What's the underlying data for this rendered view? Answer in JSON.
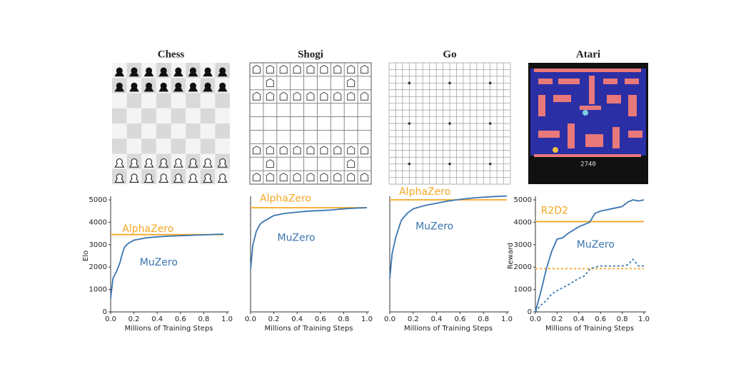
{
  "chart_data": [
    {
      "type": "line",
      "title": "Chess",
      "xlabel": "Millions of Training Steps",
      "ylabel": "Elo",
      "xlim": [
        0,
        1
      ],
      "xticks": [
        {
          "value": 0,
          "label": "0.0"
        },
        {
          "value": 0.2,
          "label": "0.2"
        },
        {
          "value": 0.4,
          "label": "0.4"
        },
        {
          "value": 0.6,
          "label": "0.6"
        },
        {
          "value": 0.8,
          "label": "0.8"
        },
        {
          "value": 1,
          "label": "1.0"
        }
      ],
      "ylim": [
        0,
        5000
      ],
      "yticks": [
        0,
        1000,
        2000,
        3000,
        4000,
        5000
      ],
      "series": [
        {
          "name": "AlphaZero",
          "color": "#f5a623",
          "x": [
            0,
            0.97
          ],
          "values": [
            3450,
            3450
          ]
        },
        {
          "name": "MuZero",
          "color": "#3a75b0",
          "x": [
            0,
            0.02,
            0.05,
            0.08,
            0.1,
            0.12,
            0.15,
            0.2,
            0.25,
            0.3,
            0.4,
            0.5,
            0.6,
            0.7,
            0.8,
            0.9,
            0.97
          ],
          "values": [
            600,
            1500,
            1800,
            2200,
            2600,
            2900,
            3050,
            3200,
            3250,
            3300,
            3350,
            3380,
            3400,
            3420,
            3440,
            3460,
            3470
          ]
        }
      ]
    },
    {
      "type": "line",
      "title": "Shogi",
      "xlabel": "Millions of Training Steps",
      "xlim": [
        0,
        1
      ],
      "xticks": [
        {
          "value": 0,
          "label": "0.0"
        },
        {
          "value": 0.2,
          "label": "0.2"
        },
        {
          "value": 0.4,
          "label": "0.4"
        },
        {
          "value": 0.6,
          "label": "0.6"
        },
        {
          "value": 0.8,
          "label": "0.8"
        },
        {
          "value": 1,
          "label": "1.0"
        }
      ],
      "ylim": [
        0,
        5000
      ],
      "series": [
        {
          "name": "AlphaZero",
          "color": "#f5a623",
          "x": [
            0,
            1
          ],
          "values": [
            4650,
            4650
          ]
        },
        {
          "name": "MuZero",
          "color": "#3a75b0",
          "x": [
            0,
            0.02,
            0.05,
            0.08,
            0.1,
            0.15,
            0.2,
            0.3,
            0.4,
            0.5,
            0.6,
            0.7,
            0.8,
            0.9,
            1.0
          ],
          "values": [
            1900,
            3000,
            3600,
            3900,
            4000,
            4150,
            4300,
            4400,
            4450,
            4500,
            4520,
            4550,
            4600,
            4630,
            4650
          ]
        }
      ]
    },
    {
      "type": "line",
      "title": "Go",
      "xlabel": "Millions of Training Steps",
      "xlim": [
        0,
        1
      ],
      "xticks": [
        {
          "value": 0,
          "label": "0.0"
        },
        {
          "value": 0.2,
          "label": "0.2"
        },
        {
          "value": 0.4,
          "label": "0.4"
        },
        {
          "value": 0.6,
          "label": "0.6"
        },
        {
          "value": 0.8,
          "label": "0.8"
        },
        {
          "value": 1,
          "label": "1.0"
        }
      ],
      "ylim": [
        0,
        5000
      ],
      "series": [
        {
          "name": "AlphaZero",
          "color": "#f5a623",
          "x": [
            0,
            1
          ],
          "values": [
            5000,
            5000
          ]
        },
        {
          "name": "MuZero",
          "color": "#3a75b0",
          "x": [
            0,
            0.02,
            0.05,
            0.08,
            0.1,
            0.15,
            0.2,
            0.3,
            0.4,
            0.5,
            0.6,
            0.7,
            0.8,
            0.9,
            1.0
          ],
          "values": [
            1500,
            2600,
            3300,
            3800,
            4100,
            4400,
            4600,
            4750,
            4850,
            4950,
            5020,
            5080,
            5120,
            5150,
            5170
          ]
        }
      ]
    },
    {
      "type": "line",
      "title": "Atari",
      "score": "2740",
      "xlabel": "Millions of Training Steps",
      "ylabel": "Reward",
      "xlim": [
        0,
        1
      ],
      "xticks": [
        {
          "value": 0,
          "label": "0.0"
        },
        {
          "value": 0.2,
          "label": "0.2"
        },
        {
          "value": 0.4,
          "label": "0.4"
        },
        {
          "value": 0.6,
          "label": "0.6"
        },
        {
          "value": 0.8,
          "label": "0.8"
        },
        {
          "value": 1,
          "label": "1.0"
        }
      ],
      "ylim": [
        0,
        5000
      ],
      "yticks": [
        0,
        1000,
        2000,
        3000,
        4000,
        5000
      ],
      "series": [
        {
          "name": "R2D2",
          "color": "#f5a623",
          "x": [
            0,
            1
          ],
          "values": [
            4030,
            4030
          ]
        },
        {
          "color": "#f5a623",
          "dash": true,
          "x": [
            0,
            1
          ],
          "values": [
            1930,
            1930
          ]
        },
        {
          "name": "MuZero",
          "color": "#3a75b0",
          "x": [
            0,
            0.05,
            0.1,
            0.15,
            0.2,
            0.25,
            0.3,
            0.4,
            0.5,
            0.55,
            0.6,
            0.7,
            0.8,
            0.85,
            0.9,
            0.95,
            1.0
          ],
          "values": [
            0,
            900,
            1900,
            2700,
            3250,
            3300,
            3500,
            3800,
            4000,
            4400,
            4500,
            4600,
            4700,
            4900,
            5000,
            4950,
            5000
          ]
        },
        {
          "color": "#3a75b0",
          "dash": true,
          "x": [
            0,
            0.05,
            0.1,
            0.15,
            0.2,
            0.3,
            0.4,
            0.45,
            0.5,
            0.55,
            0.6,
            0.7,
            0.8,
            0.85,
            0.9,
            0.95,
            1.0
          ],
          "values": [
            0,
            300,
            500,
            800,
            950,
            1200,
            1500,
            1600,
            1900,
            2000,
            2050,
            2050,
            2050,
            2100,
            2350,
            2050,
            2050
          ]
        }
      ]
    }
  ]
}
